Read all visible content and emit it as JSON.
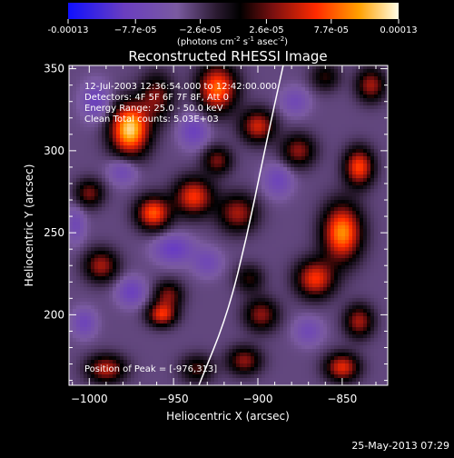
{
  "chart_data": {
    "type": "heatmap",
    "title": "Reconstructed RHESSI Image",
    "xlabel": "Heliocentric X (arcsec)",
    "ylabel": "Heliocentric Y (arcsec)",
    "xlim": [
      -1012,
      -823
    ],
    "ylim": [
      157,
      352
    ],
    "xticks": [
      {
        "value": -1000,
        "label": "−1000"
      },
      {
        "value": -950,
        "label": "−950"
      },
      {
        "value": -900,
        "label": "−900"
      },
      {
        "value": -850,
        "label": "−850"
      }
    ],
    "yticks": [
      {
        "value": 200,
        "label": "200"
      },
      {
        "value": 250,
        "label": "250"
      },
      {
        "value": 300,
        "label": "300"
      },
      {
        "value": 350,
        "label": "350"
      }
    ],
    "colorbar": {
      "min": -0.00013,
      "max": 0.00013,
      "ticks": [
        {
          "value": -0.00013,
          "label": "-0.00013"
        },
        {
          "value": -7.7e-05,
          "label": "−7.7e-05"
        },
        {
          "value": -2.6e-05,
          "label": "−2.6e-05"
        },
        {
          "value": 2.6e-05,
          "label": "2.6e-05"
        },
        {
          "value": 7.7e-05,
          "label": "7.7e-05"
        },
        {
          "value": 0.00013,
          "label": "0.00013"
        }
      ],
      "units_prefix": "(photons cm",
      "units_exp1": "-2",
      "units_mid": " s",
      "units_exp2": "-1",
      "units_suffix": " asec",
      "units_exp3": "-2",
      "units_close": ")"
    },
    "annotations": {
      "time_range": "12-Jul-2003 12:36:54.000 to 12:42:00.000",
      "detectors": "Detectors: 4F 5F 6F 7F 8F, Att 0",
      "energy": "Energy Range: 25.0 - 50.0 keV",
      "clean": "Clean    Total counts: 5.03E+03",
      "peak": "Position of Peak = [-976,313]"
    },
    "peak": {
      "x": -976,
      "y": 313
    },
    "timestamp": "25-May-2013 07:29",
    "grid": false,
    "limb_curve": [
      [
        -935,
        157
      ],
      [
        -918,
        200
      ],
      [
        -906,
        250
      ],
      [
        -896,
        300
      ],
      [
        -885,
        352
      ]
    ],
    "blobs": [
      {
        "x": -976,
        "y": 313,
        "amp": 1.3,
        "sx": 8,
        "sy": 11
      },
      {
        "x": -960,
        "y": 333,
        "amp": 0.55,
        "sx": 7,
        "sy": 10
      },
      {
        "x": -962,
        "y": 262,
        "amp": 0.95,
        "sx": 7,
        "sy": 7
      },
      {
        "x": -938,
        "y": 272,
        "amp": 0.85,
        "sx": 8,
        "sy": 8
      },
      {
        "x": -1000,
        "y": 274,
        "amp": 0.55,
        "sx": 6,
        "sy": 6
      },
      {
        "x": -993,
        "y": 230,
        "amp": 0.65,
        "sx": 7,
        "sy": 7
      },
      {
        "x": -953,
        "y": 212,
        "amp": 0.55,
        "sx": 6,
        "sy": 6
      },
      {
        "x": -957,
        "y": 200,
        "amp": 0.8,
        "sx": 6,
        "sy": 5
      },
      {
        "x": -990,
        "y": 167,
        "amp": 0.7,
        "sx": 8,
        "sy": 6
      },
      {
        "x": -936,
        "y": 167,
        "amp": 0.45,
        "sx": 7,
        "sy": 6
      },
      {
        "x": -924,
        "y": 338,
        "amp": 1.0,
        "sx": 8,
        "sy": 10
      },
      {
        "x": -900,
        "y": 315,
        "amp": 0.75,
        "sx": 7,
        "sy": 7
      },
      {
        "x": -924,
        "y": 294,
        "amp": 0.55,
        "sx": 6,
        "sy": 6
      },
      {
        "x": -912,
        "y": 262,
        "amp": 0.65,
        "sx": 8,
        "sy": 8
      },
      {
        "x": -905,
        "y": 222,
        "amp": 0.4,
        "sx": 6,
        "sy": 6
      },
      {
        "x": -898,
        "y": 200,
        "amp": 0.6,
        "sx": 7,
        "sy": 7
      },
      {
        "x": -908,
        "y": 172,
        "amp": 0.6,
        "sx": 7,
        "sy": 6
      },
      {
        "x": -876,
        "y": 300,
        "amp": 0.6,
        "sx": 7,
        "sy": 7
      },
      {
        "x": -850,
        "y": 250,
        "amp": 1.1,
        "sx": 8,
        "sy": 12
      },
      {
        "x": -840,
        "y": 290,
        "amp": 0.9,
        "sx": 6,
        "sy": 8
      },
      {
        "x": -866,
        "y": 222,
        "amp": 0.85,
        "sx": 8,
        "sy": 8
      },
      {
        "x": -840,
        "y": 196,
        "amp": 0.65,
        "sx": 6,
        "sy": 7
      },
      {
        "x": -850,
        "y": 168,
        "amp": 0.8,
        "sx": 7,
        "sy": 6
      },
      {
        "x": -833,
        "y": 340,
        "amp": 0.65,
        "sx": 6,
        "sy": 7
      },
      {
        "x": -860,
        "y": 345,
        "amp": 0.4,
        "sx": 6,
        "sy": 6
      },
      {
        "x": -996,
        "y": 330,
        "amp": -0.4,
        "sx": 6,
        "sy": 8
      },
      {
        "x": -980,
        "y": 288,
        "amp": -0.35,
        "sx": 6,
        "sy": 6
      },
      {
        "x": -950,
        "y": 240,
        "amp": -0.45,
        "sx": 8,
        "sy": 6
      },
      {
        "x": -975,
        "y": 214,
        "amp": -0.4,
        "sx": 6,
        "sy": 6
      },
      {
        "x": -1003,
        "y": 195,
        "amp": -0.35,
        "sx": 5,
        "sy": 6
      },
      {
        "x": -938,
        "y": 312,
        "amp": -0.4,
        "sx": 6,
        "sy": 7
      },
      {
        "x": -888,
        "y": 282,
        "amp": -0.35,
        "sx": 6,
        "sy": 7
      },
      {
        "x": -930,
        "y": 232,
        "amp": -0.3,
        "sx": 6,
        "sy": 6
      },
      {
        "x": -870,
        "y": 190,
        "amp": -0.3,
        "sx": 6,
        "sy": 6
      },
      {
        "x": -878,
        "y": 330,
        "amp": -0.3,
        "sx": 6,
        "sy": 6
      },
      {
        "x": -1008,
        "y": 255,
        "amp": -0.3,
        "sx": 4,
        "sy": 8
      }
    ]
  }
}
